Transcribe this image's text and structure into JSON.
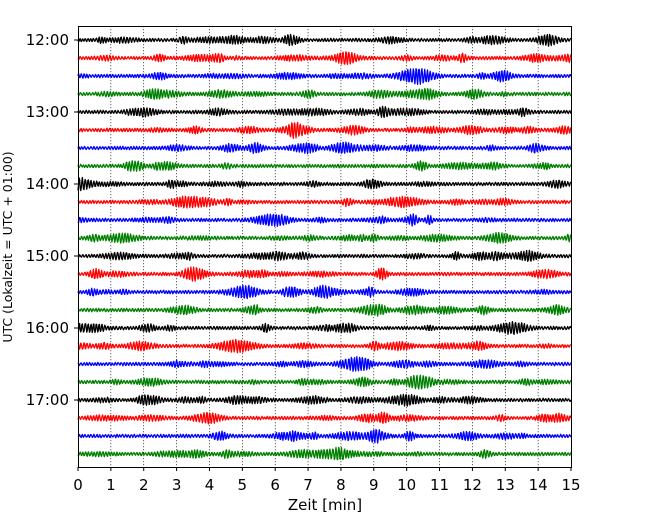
{
  "chart_data": {
    "type": "line",
    "title": "",
    "xlabel": "Zeit  [min]",
    "ylabel": "UTC (Lokalzeit = UTC + 01:00)",
    "xlim": [
      0,
      15
    ],
    "x_ticks": [
      "0",
      "1",
      "2",
      "3",
      "4",
      "5",
      "6",
      "7",
      "8",
      "9",
      "10",
      "11",
      "12",
      "13",
      "14",
      "15"
    ],
    "y_ticks": [
      "12:00",
      "13:00",
      "14:00",
      "15:00",
      "16:00",
      "17:00"
    ],
    "grid": "vertical",
    "trace_interval_minutes": 15,
    "start_time": "12:00",
    "colors": [
      "#000000",
      "#ff0000",
      "#0000ff",
      "#008000"
    ],
    "series": [
      {
        "start": "12:00",
        "color": "#000000"
      },
      {
        "start": "12:15",
        "color": "#ff0000"
      },
      {
        "start": "12:30",
        "color": "#0000ff"
      },
      {
        "start": "12:45",
        "color": "#008000"
      },
      {
        "start": "13:00",
        "color": "#000000"
      },
      {
        "start": "13:15",
        "color": "#ff0000"
      },
      {
        "start": "13:30",
        "color": "#0000ff"
      },
      {
        "start": "13:45",
        "color": "#008000"
      },
      {
        "start": "14:00",
        "color": "#000000"
      },
      {
        "start": "14:15",
        "color": "#ff0000"
      },
      {
        "start": "14:30",
        "color": "#0000ff"
      },
      {
        "start": "14:45",
        "color": "#008000"
      },
      {
        "start": "15:00",
        "color": "#000000"
      },
      {
        "start": "15:15",
        "color": "#ff0000"
      },
      {
        "start": "15:30",
        "color": "#0000ff"
      },
      {
        "start": "15:45",
        "color": "#008000"
      },
      {
        "start": "16:00",
        "color": "#000000"
      },
      {
        "start": "16:15",
        "color": "#ff0000"
      },
      {
        "start": "16:30",
        "color": "#0000ff"
      },
      {
        "start": "16:45",
        "color": "#008000"
      },
      {
        "start": "17:00",
        "color": "#000000"
      },
      {
        "start": "17:15",
        "color": "#ff0000"
      },
      {
        "start": "17:30",
        "color": "#0000ff"
      },
      {
        "start": "17:45",
        "color": "#008000"
      }
    ]
  }
}
